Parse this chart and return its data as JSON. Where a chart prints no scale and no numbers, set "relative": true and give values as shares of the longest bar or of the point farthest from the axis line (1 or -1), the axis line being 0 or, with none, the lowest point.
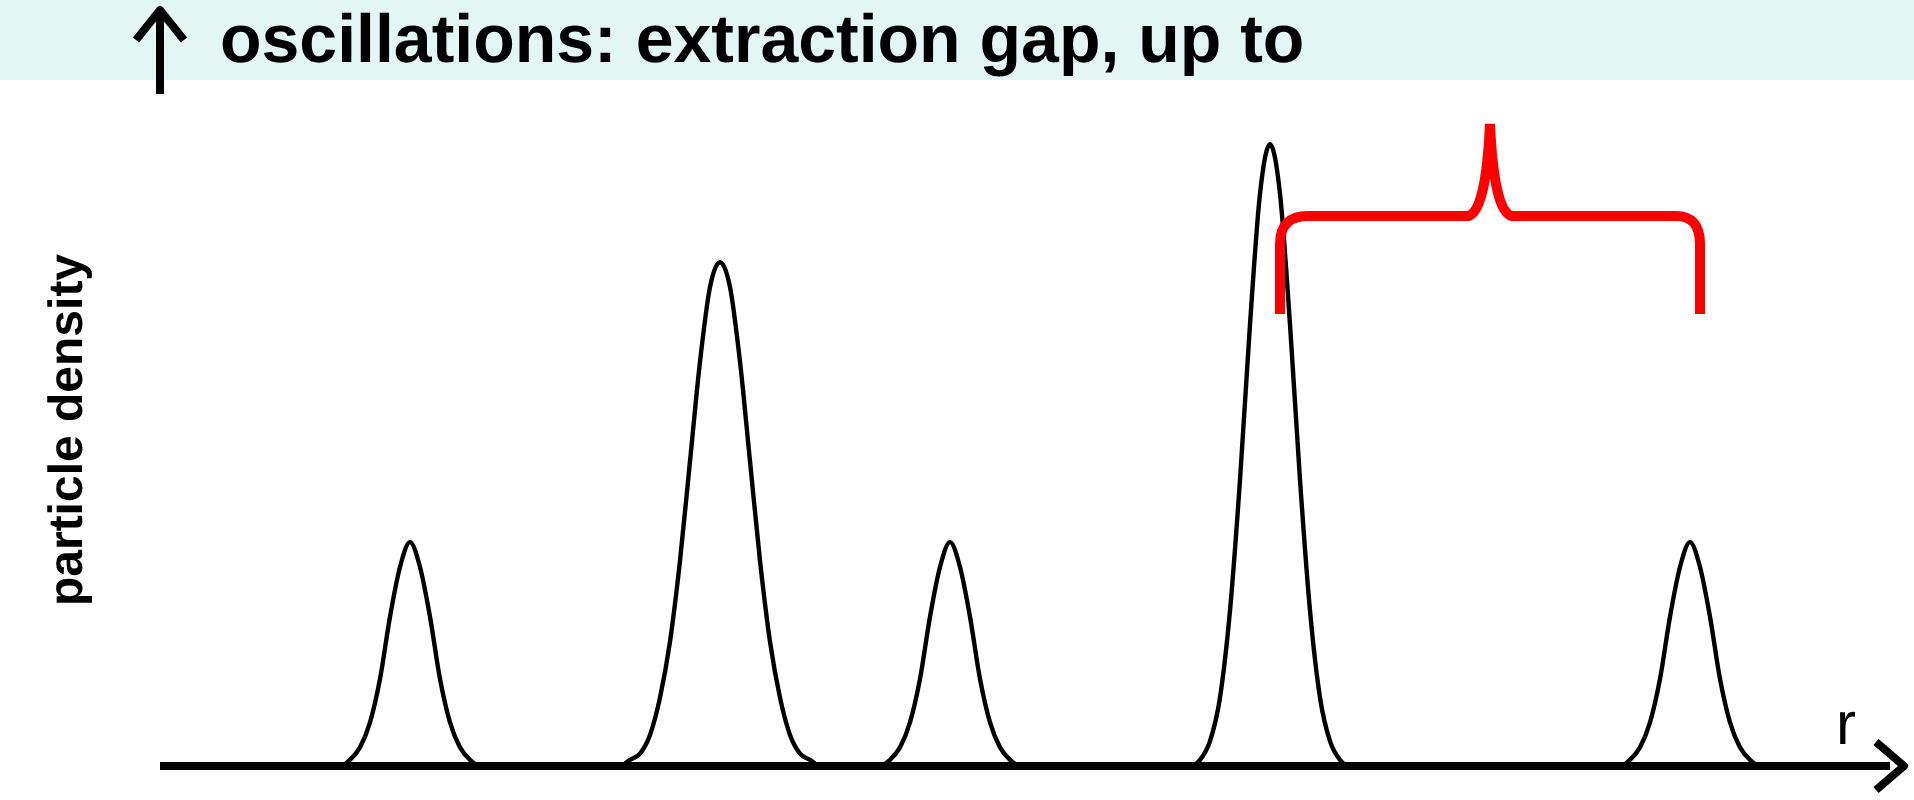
{
  "chart_data": {
    "type": "line",
    "title": "oscillations: extraction gap, up to",
    "xlabel": "r",
    "ylabel": "particle density",
    "relative": true,
    "marker": "none",
    "categories": [
      null,
      null,
      null,
      null,
      null,
      null,
      null,
      null,
      null,
      null,
      null,
      null,
      null,
      null,
      null,
      null,
      null,
      null,
      null,
      null,
      null,
      null,
      null,
      null,
      null,
      null,
      null,
      null,
      null,
      null,
      null,
      null,
      null,
      null,
      null,
      null,
      null,
      null,
      null,
      null,
      null,
      null,
      null,
      null,
      null,
      null,
      null,
      null,
      null,
      null,
      null,
      null,
      null,
      null,
      null,
      null,
      null,
      null,
      null,
      null,
      null,
      null,
      null,
      null,
      null,
      null,
      null,
      null,
      null,
      null,
      null,
      null,
      null,
      null,
      null,
      null,
      null,
      null,
      null,
      null,
      null,
      null,
      null,
      null,
      null,
      null,
      null,
      null,
      null,
      null,
      null,
      null,
      null,
      null,
      null,
      null,
      null,
      null,
      null,
      null,
      null,
      null,
      null,
      null,
      null,
      null,
      null,
      null,
      null,
      null,
      null,
      null,
      null,
      null,
      null,
      null,
      null,
      null,
      null,
      null,
      null,
      null,
      null,
      null,
      null,
      null,
      null,
      null,
      null,
      null,
      null,
      null,
      null,
      null,
      null,
      null,
      null,
      null,
      null,
      null,
      null,
      null,
      null,
      null,
      null,
      null,
      null,
      null,
      null,
      null,
      null,
      null,
      null,
      null,
      null,
      null,
      null,
      null,
      null,
      null,
      null,
      null,
      null,
      null,
      null,
      null,
      null,
      null,
      null,
      null,
      null,
      null,
      null,
      null
    ],
    "series": [
      {
        "color": "#000000",
        "values": [
          0,
          0,
          0,
          0,
          0,
          0,
          0,
          0,
          0,
          0,
          0,
          0,
          0,
          0,
          0,
          0,
          0,
          0,
          0,
          0.01,
          0.03,
          0.07,
          0.14,
          0.24,
          0.32,
          0.36,
          0.32,
          0.24,
          0.14,
          0.07,
          0.03,
          0.01,
          0,
          0,
          0,
          0,
          0,
          0,
          0,
          0,
          0,
          0,
          0,
          0,
          0,
          0,
          0,
          0.01,
          0.02,
          0.05,
          0.11,
          0.2,
          0.33,
          0.49,
          0.65,
          0.77,
          0.81,
          0.77,
          0.65,
          0.49,
          0.33,
          0.2,
          0.11,
          0.05,
          0.02,
          0.01,
          0,
          0,
          0,
          0,
          0,
          0,
          0,
          0.01,
          0.03,
          0.07,
          0.14,
          0.24,
          0.32,
          0.36,
          0.32,
          0.24,
          0.14,
          0.07,
          0.03,
          0.01,
          0,
          0,
          0,
          0,
          0,
          0,
          0,
          0,
          0,
          0,
          0,
          0,
          0,
          0,
          0,
          0,
          0,
          0,
          0.01,
          0.04,
          0.11,
          0.25,
          0.46,
          0.71,
          0.92,
          1,
          0.92,
          0.71,
          0.46,
          0.25,
          0.11,
          0.04,
          0.01,
          0,
          0,
          0,
          0,
          0,
          0,
          0,
          0,
          0,
          0,
          0,
          0,
          0,
          0,
          0,
          0,
          0,
          0,
          0,
          0,
          0,
          0,
          0,
          0,
          0,
          0,
          0,
          0,
          0.01,
          0.03,
          0.07,
          0.14,
          0.24,
          0.32,
          0.36,
          0.32,
          0.24,
          0.14,
          0.07,
          0.03,
          0.01,
          0,
          0,
          0,
          0,
          0,
          0,
          0,
          0,
          0,
          0,
          0,
          0,
          0,
          0
        ]
      }
    ]
  }
}
